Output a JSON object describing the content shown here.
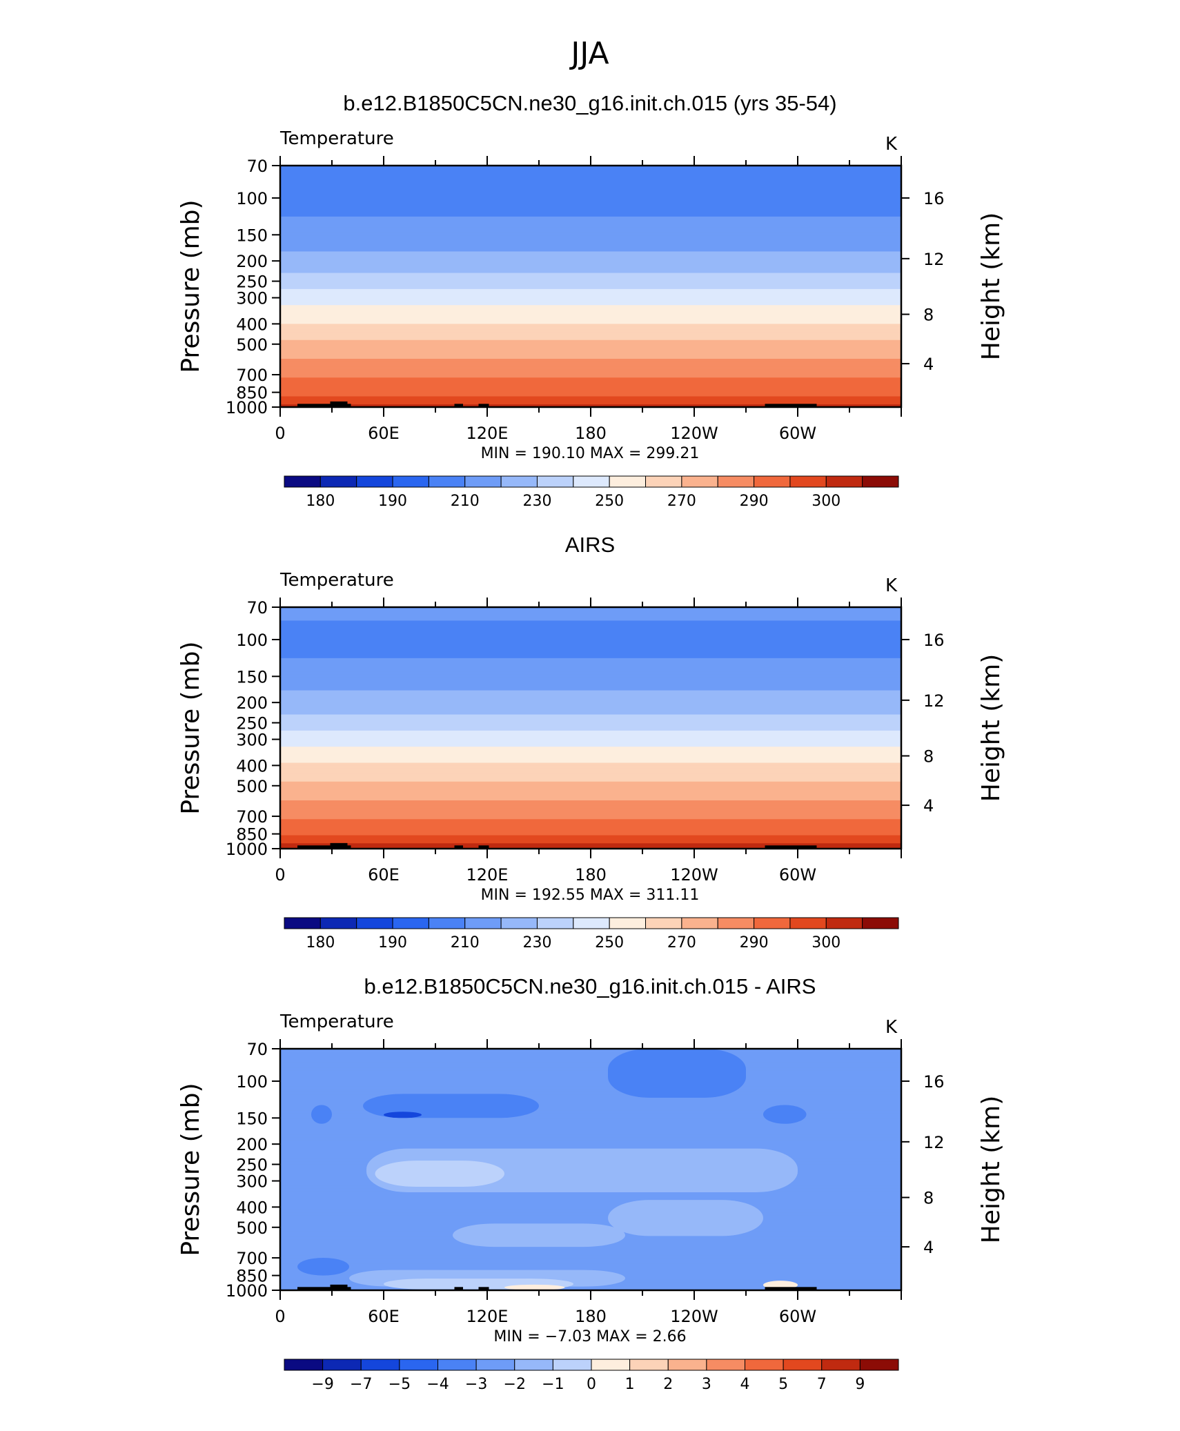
{
  "figure_title": "JJA",
  "chart_data": [
    {
      "type": "heatmap",
      "title": "b.e12.B1850C5CN.ne30_g16.init.ch.015 (yrs 35-54)",
      "left_label": "Temperature",
      "right_label": "K",
      "ylabel": "Pressure (mb)",
      "y2label": "Height (km)",
      "yticks": [
        "70",
        "100",
        "150",
        "200",
        "250",
        "300",
        "400",
        "500",
        "700",
        "850",
        "1000"
      ],
      "y2ticks": [
        "16",
        "12",
        "8",
        "4"
      ],
      "xticks": [
        "0",
        "60E",
        "120E",
        "180",
        "120W",
        "60W"
      ],
      "xlim": [
        0,
        360
      ],
      "stats": "MIN =  190.10   MAX =  299.21",
      "colorbar_labels": [
        "180",
        "190",
        "210",
        "230",
        "250",
        "270",
        "290",
        "300"
      ],
      "levels": [
        175,
        180,
        185,
        190,
        200,
        210,
        220,
        230,
        240,
        250,
        260,
        270,
        280,
        290,
        295,
        300
      ],
      "profile": [
        {
          "p": 70,
          "v": 198
        },
        {
          "p": 100,
          "v": 197
        },
        {
          "p": 130,
          "v": 201
        },
        {
          "p": 150,
          "v": 205
        },
        {
          "p": 200,
          "v": 213
        },
        {
          "p": 250,
          "v": 224
        },
        {
          "p": 300,
          "v": 235
        },
        {
          "p": 400,
          "v": 250
        },
        {
          "p": 500,
          "v": 262
        },
        {
          "p": 700,
          "v": 278
        },
        {
          "p": 850,
          "v": 287
        },
        {
          "p": 1000,
          "v": 296
        }
      ]
    },
    {
      "type": "heatmap",
      "title": "AIRS",
      "left_label": "Temperature",
      "right_label": "K",
      "ylabel": "Pressure (mb)",
      "y2label": "Height (km)",
      "yticks": [
        "70",
        "100",
        "150",
        "200",
        "250",
        "300",
        "400",
        "500",
        "700",
        "850",
        "1000"
      ],
      "y2ticks": [
        "16",
        "12",
        "8",
        "4"
      ],
      "xticks": [
        "0",
        "60E",
        "120E",
        "180",
        "120W",
        "60W"
      ],
      "xlim": [
        0,
        360
      ],
      "stats": "MIN =  192.55   MAX =  311.11",
      "colorbar_labels": [
        "180",
        "190",
        "210",
        "230",
        "250",
        "270",
        "290",
        "300"
      ],
      "levels": [
        175,
        180,
        185,
        190,
        200,
        210,
        220,
        230,
        240,
        250,
        260,
        270,
        280,
        290,
        295,
        300
      ],
      "profile": [
        {
          "p": 70,
          "v": 202
        },
        {
          "p": 100,
          "v": 197
        },
        {
          "p": 130,
          "v": 201
        },
        {
          "p": 150,
          "v": 205
        },
        {
          "p": 200,
          "v": 214
        },
        {
          "p": 250,
          "v": 225
        },
        {
          "p": 300,
          "v": 236
        },
        {
          "p": 400,
          "v": 251
        },
        {
          "p": 500,
          "v": 263
        },
        {
          "p": 700,
          "v": 279
        },
        {
          "p": 850,
          "v": 289
        },
        {
          "p": 1000,
          "v": 299
        }
      ]
    },
    {
      "type": "heatmap",
      "title": "b.e12.B1850C5CN.ne30_g16.init.ch.015 - AIRS",
      "left_label": "Temperature",
      "right_label": "K",
      "ylabel": "Pressure (mb)",
      "y2label": "Height (km)",
      "yticks": [
        "70",
        "100",
        "150",
        "200",
        "250",
        "300",
        "400",
        "500",
        "700",
        "850",
        "1000"
      ],
      "y2ticks": [
        "16",
        "12",
        "8",
        "4"
      ],
      "xticks": [
        "0",
        "60E",
        "120E",
        "180",
        "120W",
        "60W"
      ],
      "xlim": [
        0,
        360
      ],
      "stats": "MIN =   −7.03   MAX =    2.66",
      "colorbar_labels": [
        "−9",
        "−7",
        "−5",
        "−4",
        "−3",
        "−2",
        "−1",
        "0",
        "1",
        "2",
        "3",
        "4",
        "5",
        "7",
        "9"
      ],
      "levels": [
        -9,
        -7,
        -5,
        -4,
        -3,
        -2,
        -1,
        0,
        1,
        2,
        3,
        4,
        5,
        7,
        9
      ],
      "background_value": -2.5,
      "patches": [
        {
          "lon": [
            48,
            150
          ],
          "p": [
            115,
            150
          ],
          "v": -3.5
        },
        {
          "lon": [
            60,
            82
          ],
          "p": [
            140,
            150
          ],
          "v": -5.5
        },
        {
          "lon": [
            190,
            270
          ],
          "p": [
            70,
            120
          ],
          "v": -3.5
        },
        {
          "lon": [
            280,
            305
          ],
          "p": [
            130,
            160
          ],
          "v": -3.5
        },
        {
          "lon": [
            18,
            30
          ],
          "p": [
            130,
            160
          ],
          "v": -3.5
        },
        {
          "lon": [
            50,
            300
          ],
          "p": [
            210,
            340
          ],
          "v": -1.5
        },
        {
          "lon": [
            55,
            130
          ],
          "p": [
            240,
            320
          ],
          "v": -0.5
        },
        {
          "lon": [
            190,
            280
          ],
          "p": [
            370,
            550
          ],
          "v": -1.5
        },
        {
          "lon": [
            100,
            200
          ],
          "p": [
            480,
            620
          ],
          "v": -1.5
        },
        {
          "lon": [
            40,
            200
          ],
          "p": [
            800,
            960
          ],
          "v": -1.5
        },
        {
          "lon": [
            60,
            170
          ],
          "p": [
            880,
            990
          ],
          "v": -0.5
        },
        {
          "lon": [
            130,
            165
          ],
          "p": [
            940,
            1000
          ],
          "v": 0.5
        },
        {
          "lon": [
            10,
            40
          ],
          "p": [
            700,
            850
          ],
          "v": -3.5
        },
        {
          "lon": [
            280,
            300
          ],
          "p": [
            900,
            990
          ],
          "v": 0.5
        }
      ]
    }
  ]
}
